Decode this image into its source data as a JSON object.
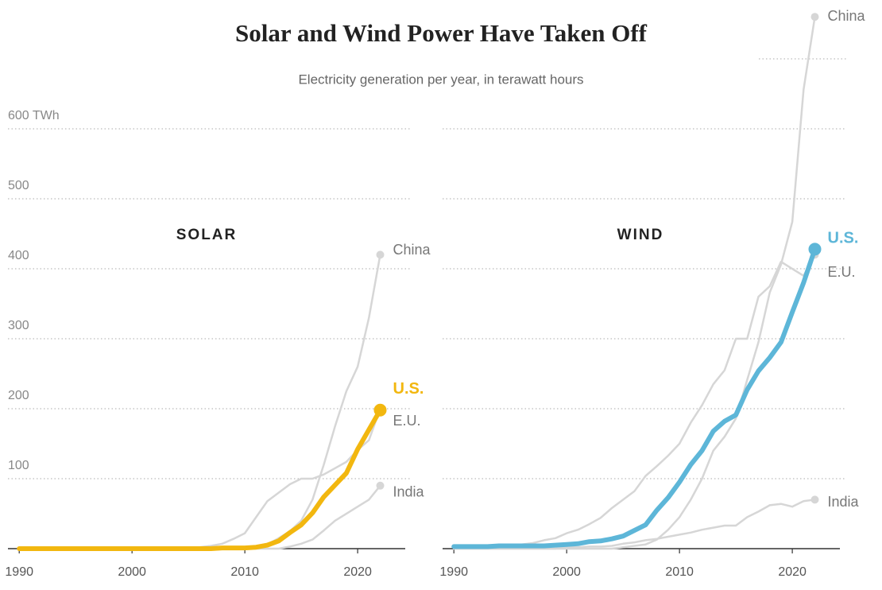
{
  "title": "Solar and Wind Power Have Taken Off",
  "subtitle": "Electricity generation per year, in terawatt hours",
  "chart_data": [
    {
      "type": "line",
      "title": "SOLAR",
      "x": [
        1990,
        1991,
        1992,
        1993,
        1994,
        1995,
        1996,
        1997,
        1998,
        1999,
        2000,
        2001,
        2002,
        2003,
        2004,
        2005,
        2006,
        2007,
        2008,
        2009,
        2010,
        2011,
        2012,
        2013,
        2014,
        2015,
        2016,
        2017,
        2018,
        2019,
        2020,
        2021,
        2022
      ],
      "xlim": [
        1989,
        2024.5
      ],
      "xticks": [
        1990,
        2000,
        2010,
        2020
      ],
      "ylim": [
        0,
        780
      ],
      "yticks": [
        100,
        200,
        300,
        400,
        500,
        {
          "value": 600,
          "label": "600 TWh"
        }
      ],
      "grid": true,
      "series": [
        {
          "name": "China",
          "color": "#d6d6d6",
          "values": [
            0,
            0,
            0,
            0,
            0,
            0,
            0,
            0,
            0,
            0,
            0,
            0,
            0,
            0,
            0,
            0,
            0,
            0,
            0,
            0,
            1,
            3,
            6,
            15,
            25,
            40,
            70,
            120,
            175,
            225,
            260,
            330,
            420
          ]
        },
        {
          "name": "E.U.",
          "color": "#d6d6d6",
          "values": [
            0,
            0,
            0,
            0,
            0,
            0,
            0,
            0,
            0,
            0,
            0,
            0,
            0,
            0,
            0,
            1,
            2,
            4,
            7,
            14,
            22,
            45,
            68,
            80,
            92,
            100,
            100,
            106,
            115,
            124,
            141,
            155,
            200
          ]
        },
        {
          "name": "India",
          "color": "#d6d6d6",
          "values": [
            0,
            0,
            0,
            0,
            0,
            0,
            0,
            0,
            0,
            0,
            0,
            0,
            0,
            0,
            0,
            0,
            0,
            0,
            0,
            0,
            0,
            0,
            0,
            0,
            3,
            7,
            13,
            26,
            40,
            50,
            60,
            70,
            90
          ]
        },
        {
          "name": "U.S.",
          "color": "#f2b70f",
          "values": [
            0,
            0,
            0,
            0,
            0,
            0,
            0,
            0,
            0,
            0,
            0,
            0,
            0,
            0,
            0,
            0,
            0,
            0,
            1,
            1,
            1,
            2,
            5,
            11,
            23,
            34,
            51,
            74,
            91,
            108,
            142,
            170,
            198
          ]
        }
      ]
    },
    {
      "type": "line",
      "title": "WIND",
      "x": [
        1990,
        1991,
        1992,
        1993,
        1994,
        1995,
        1996,
        1997,
        1998,
        1999,
        2000,
        2001,
        2002,
        2003,
        2004,
        2005,
        2006,
        2007,
        2008,
        2009,
        2010,
        2011,
        2012,
        2013,
        2014,
        2015,
        2016,
        2017,
        2018,
        2019,
        2020,
        2021,
        2022
      ],
      "xlim": [
        1989,
        2024.5
      ],
      "xticks": [
        1990,
        2000,
        2010,
        2020
      ],
      "ylim": [
        0,
        780
      ],
      "ygrid": [
        100,
        200,
        300,
        400,
        500,
        600,
        700
      ],
      "series": [
        {
          "name": "China",
          "color": "#d6d6d6",
          "values": [
            0,
            0,
            0,
            0,
            0,
            0,
            0,
            0,
            0,
            0,
            0,
            0,
            0,
            0,
            0,
            2,
            4,
            6,
            13,
            27,
            45,
            70,
            100,
            140,
            160,
            186,
            241,
            295,
            366,
            406,
            467,
            656,
            760
          ]
        },
        {
          "name": "E.U.",
          "color": "#d6d6d6",
          "values": [
            1,
            1,
            2,
            3,
            4,
            4,
            6,
            8,
            12,
            15,
            22,
            27,
            35,
            44,
            58,
            70,
            82,
            104,
            118,
            133,
            150,
            180,
            205,
            235,
            255,
            300,
            300,
            360,
            375,
            410,
            400,
            390,
            420
          ]
        },
        {
          "name": "India",
          "color": "#d6d6d6",
          "values": [
            0,
            0,
            0,
            0,
            0,
            0,
            0,
            0,
            0,
            0,
            2,
            2,
            3,
            3,
            4,
            7,
            9,
            12,
            14,
            17,
            20,
            23,
            27,
            30,
            33,
            33,
            45,
            53,
            62,
            64,
            60,
            68,
            70
          ]
        },
        {
          "name": "U.S.",
          "color": "#5db6d8",
          "values": [
            3,
            3,
            3,
            3,
            4,
            4,
            4,
            4,
            4,
            5,
            6,
            7,
            10,
            11,
            14,
            18,
            26,
            34,
            55,
            73,
            95,
            120,
            140,
            168,
            182,
            191,
            227,
            254,
            273,
            295,
            338,
            380,
            428
          ]
        }
      ]
    }
  ]
}
